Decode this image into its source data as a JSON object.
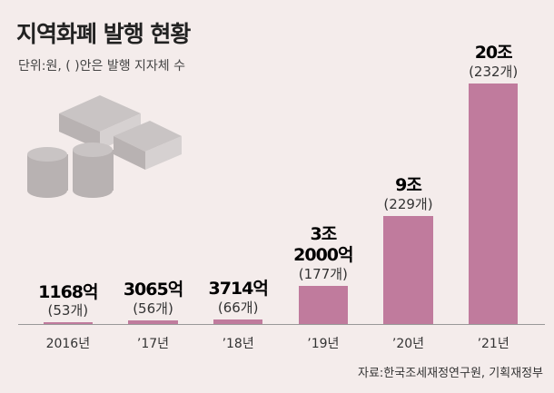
{
  "chart_data": {
    "type": "bar",
    "title": "지역화폐 발행 현황",
    "subtitle": "단위:원, (  )안은 발행 지자체 수",
    "source": "자료:한국조세재정연구원, 기획재정부",
    "categories": [
      "2016년",
      "’17년",
      "’18년",
      "’19년",
      "’20년",
      "’21년"
    ],
    "values": [
      1168,
      3065,
      3714,
      32000,
      90000,
      200000
    ],
    "value_labels": [
      "1168억",
      "3065억",
      "3714억",
      "3조\n2000억",
      "9조",
      "20조"
    ],
    "issuer_labels": [
      "(53개)",
      "(56개)",
      "(66개)",
      "(177개)",
      "(229개)",
      "(232개)"
    ],
    "color": "#c07b9d",
    "ylim": [
      0,
      200000
    ]
  }
}
